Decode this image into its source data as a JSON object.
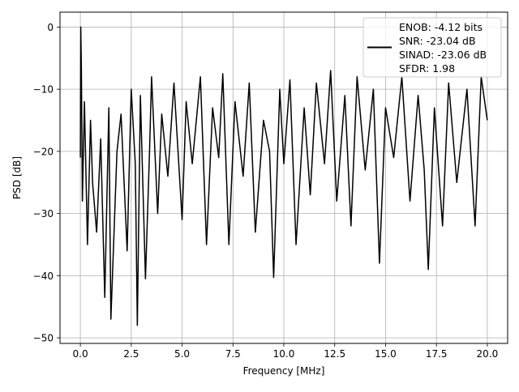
{
  "chart_data": {
    "type": "line",
    "title": "",
    "xlabel": "Frequency [MHz]",
    "ylabel": "PSD [dB]",
    "xlim": [
      -1.0,
      21.0
    ],
    "ylim": [
      -50.9,
      2.4
    ],
    "x_ticks": [
      0.0,
      2.5,
      5.0,
      7.5,
      10.0,
      12.5,
      15.0,
      17.5,
      20.0
    ],
    "x_tick_labels": [
      "0.0",
      "2.5",
      "5.0",
      "7.5",
      "10.0",
      "12.5",
      "15.0",
      "17.5",
      "20.0"
    ],
    "y_ticks": [
      0,
      -10,
      -20,
      -30,
      -40,
      -50
    ],
    "y_tick_labels": [
      "0",
      "−10",
      "−20",
      "−30",
      "−40",
      "−50"
    ],
    "grid": true,
    "legend_position": "top-right",
    "legend_lines": [
      "ENOB: -4.12 bits",
      "SNR: -23.04 dB",
      "SINAD: -23.06 dB",
      "SFDR: 1.98"
    ],
    "series": [
      {
        "color": "#000000",
        "description_of_shape": "noise floor spanning roughly -8 to -28 dB across 0 to 20 MHz, with a peak at 0 dB near 0 MHz and deep dips down to about -48 dB",
        "x": [
          0.0,
          0.02,
          0.05,
          0.1,
          0.2,
          0.35,
          0.5,
          0.6,
          0.8,
          1.0,
          1.2,
          1.4,
          1.5,
          1.8,
          2.0,
          2.3,
          2.5,
          2.7,
          2.8,
          2.95,
          3.2,
          3.4,
          3.5,
          3.8,
          4.0,
          4.3,
          4.6,
          5.0,
          5.2,
          5.5,
          5.9,
          6.2,
          6.5,
          6.8,
          7.0,
          7.3,
          7.6,
          8.0,
          8.3,
          8.6,
          9.0,
          9.3,
          9.5,
          9.8,
          10.0,
          10.3,
          10.6,
          11.0,
          11.3,
          11.6,
          12.0,
          12.3,
          12.6,
          13.0,
          13.3,
          13.6,
          14.0,
          14.4,
          14.7,
          15.0,
          15.4,
          15.8,
          16.2,
          16.6,
          16.9,
          17.1,
          17.4,
          17.8,
          18.1,
          18.5,
          19.0,
          19.4,
          19.7,
          20.0
        ],
        "y": [
          -21,
          0,
          -6.5,
          -28,
          -12,
          -35,
          -15,
          -25,
          -33,
          -18,
          -43.5,
          -13,
          -47,
          -20,
          -14,
          -36,
          -10,
          -22,
          -48,
          -11,
          -40.5,
          -20,
          -8,
          -30,
          -14,
          -24,
          -9,
          -31,
          -12,
          -22,
          -8,
          -35,
          -13,
          -21,
          -7.5,
          -35,
          -12,
          -24,
          -9,
          -33,
          -15,
          -20,
          -40.3,
          -10,
          -22,
          -8.5,
          -35,
          -13,
          -27,
          -9,
          -22,
          -7,
          -28,
          -11,
          -32,
          -8,
          -23,
          -10,
          -38,
          -13,
          -21,
          -8,
          -28,
          -11,
          -23,
          -39,
          -13,
          -32,
          -9,
          -25,
          -10,
          -32,
          -8,
          -15
        ]
      }
    ]
  }
}
